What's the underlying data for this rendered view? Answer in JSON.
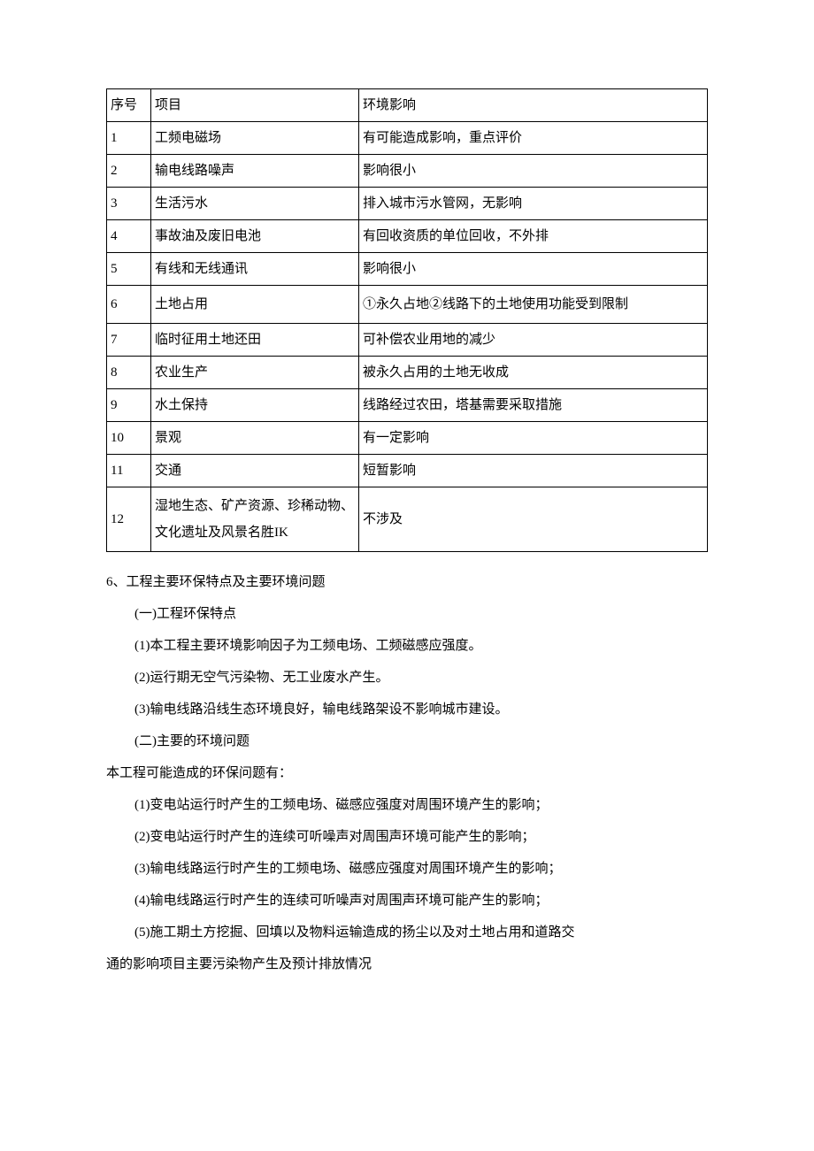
{
  "table": {
    "headers": {
      "num": "序号",
      "item": "项目",
      "impact": "环境影响"
    },
    "rows": [
      {
        "num": "1",
        "item": "工频电磁场",
        "impact": "有可能造成影响，重点评价"
      },
      {
        "num": "2",
        "item": "输电线路噪声",
        "impact": "影响很小"
      },
      {
        "num": "3",
        "item": "生活污水",
        "impact": "排入城市污水管网，无影响"
      },
      {
        "num": "4",
        "item": "事故油及废旧电池",
        "impact": "有回收资质的单位回收，不外排"
      },
      {
        "num": "5",
        "item": "有线和无线通讯",
        "impact": "影响很小"
      },
      {
        "num": "6",
        "item": "土地占用",
        "impact": "①永久占地②线路下的土地使用功能受到限制"
      },
      {
        "num": "7",
        "item": "临时征用土地还田",
        "impact": "可补偿农业用地的减少"
      },
      {
        "num": "8",
        "item": "农业生产",
        "impact": "被永久占用的土地无收成"
      },
      {
        "num": "9",
        "item": "水土保持",
        "impact": "线路经过农田，塔基需要采取措施"
      },
      {
        "num": "10",
        "item": "景观",
        "impact": "有一定影响"
      },
      {
        "num": "11",
        "item": "交通",
        "impact": "短暂影响"
      },
      {
        "num": "12",
        "item": "湿地生态、矿产资源、珍稀动物、文化遗址及风景名胜IK",
        "impact": "不涉及"
      }
    ]
  },
  "section": {
    "heading": "6、工程主要环保特点及主要环境问题",
    "sub1_title": "(一)工程环保特点",
    "sub1_items": [
      "(1)本工程主要环境影响因子为工频电场、工频磁感应强度。",
      "(2)运行期无空气污染物、无工业废水产生。",
      "(3)输电线路沿线生态环境良好，输电线路架设不影响城市建设。"
    ],
    "sub2_title": "(二)主要的环境问题",
    "sub2_intro": "本工程可能造成的环保问题有：",
    "sub2_items": [
      "(1)变电站运行时产生的工频电场、磁感应强度对周围环境产生的影响；",
      "(2)变电站运行时产生的连续可听噪声对周围声环境可能产生的影响；",
      "(3)输电线路运行时产生的工频电场、磁感应强度对周围环境产生的影响；",
      "(4)输电线路运行时产生的连续可听噪声对周围声环境可能产生的影响；",
      "(5)施工期土方挖掘、回填以及物料运输造成的扬尘以及对土地占用和道路交"
    ],
    "sub2_tail": "通的影响项目主要污染物产生及预计排放情况"
  }
}
